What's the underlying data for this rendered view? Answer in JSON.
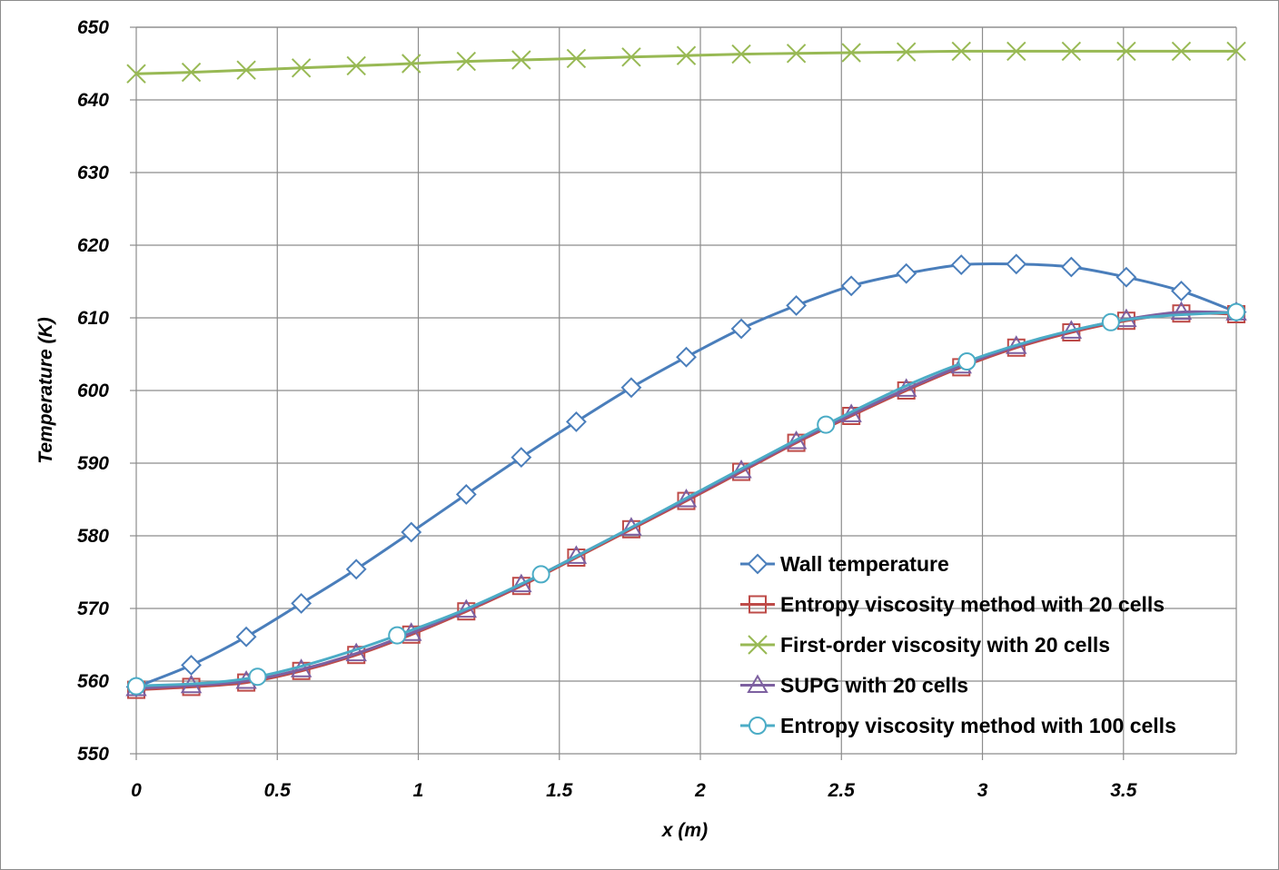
{
  "chart_data": {
    "type": "line",
    "title": "",
    "xlabel": "x (m)",
    "ylabel": "Temperature (K)",
    "xlim": [
      0,
      3.9
    ],
    "ylim": [
      550,
      650
    ],
    "grid": true,
    "legend_position": "bottom-right",
    "x_ticks": [
      "0",
      "0.5",
      "1",
      "1.5",
      "2",
      "2.5",
      "3",
      "3.5"
    ],
    "y_ticks": [
      "550",
      "560",
      "570",
      "580",
      "590",
      "600",
      "610",
      "620",
      "630",
      "640",
      "650"
    ],
    "series": [
      {
        "name": "Wall temperature",
        "color": "#4a7ebb",
        "marker": "diamond",
        "x": [
          0,
          0.195,
          0.39,
          0.585,
          0.78,
          0.975,
          1.17,
          1.365,
          1.56,
          1.755,
          1.95,
          2.145,
          2.34,
          2.535,
          2.73,
          2.925,
          3.12,
          3.315,
          3.51,
          3.705,
          3.9
        ],
        "values": [
          559.2,
          562.2,
          566.1,
          570.7,
          575.4,
          580.5,
          585.7,
          590.8,
          595.7,
          600.4,
          604.6,
          608.5,
          611.7,
          614.4,
          616.1,
          617.3,
          617.4,
          617.0,
          615.6,
          613.7,
          610.8
        ]
      },
      {
        "name": "Entropy viscosity method with 20 cells",
        "color": "#be4b48",
        "marker": "square",
        "x": [
          0,
          0.195,
          0.39,
          0.585,
          0.78,
          0.975,
          1.17,
          1.365,
          1.56,
          1.755,
          1.95,
          2.145,
          2.34,
          2.535,
          2.73,
          2.925,
          3.12,
          3.315,
          3.51,
          3.705,
          3.9
        ],
        "values": [
          558.8,
          559.2,
          559.8,
          561.4,
          563.6,
          566.4,
          569.6,
          573.1,
          577.0,
          580.9,
          584.8,
          588.8,
          592.8,
          596.5,
          600.0,
          603.2,
          605.9,
          608.0,
          609.6,
          610.6,
          610.5
        ]
      },
      {
        "name": "First-order viscosity with 20 cells",
        "color": "#98b954",
        "marker": "x",
        "x": [
          0,
          0.195,
          0.39,
          0.585,
          0.78,
          0.975,
          1.17,
          1.365,
          1.56,
          1.755,
          1.95,
          2.145,
          2.34,
          2.535,
          2.73,
          2.925,
          3.12,
          3.315,
          3.51,
          3.705,
          3.9
        ],
        "values": [
          643.6,
          643.8,
          644.1,
          644.4,
          644.7,
          645.0,
          645.3,
          645.5,
          645.7,
          645.9,
          646.1,
          646.3,
          646.4,
          646.5,
          646.6,
          646.7,
          646.7,
          646.7,
          646.7,
          646.7,
          646.7
        ]
      },
      {
        "name": "SUPG with 20 cells",
        "color": "#7d60a0",
        "marker": "triangle",
        "x": [
          0,
          0.195,
          0.39,
          0.585,
          0.78,
          0.975,
          1.17,
          1.365,
          1.56,
          1.755,
          1.95,
          2.145,
          2.34,
          2.535,
          2.73,
          2.925,
          3.12,
          3.315,
          3.51,
          3.705,
          3.9
        ],
        "values": [
          559.0,
          559.4,
          560.0,
          561.6,
          563.8,
          566.6,
          569.8,
          573.3,
          577.2,
          581.1,
          585.0,
          589.0,
          593.0,
          596.7,
          600.2,
          603.4,
          606.1,
          608.2,
          609.8,
          610.8,
          610.7
        ]
      },
      {
        "name": "Entropy viscosity method with 100 cells",
        "color": "#4bacc6",
        "marker": "circle",
        "x": [
          0,
          0.43,
          0.925,
          1.435,
          2.445,
          2.945,
          3.455,
          3.9
        ],
        "values": [
          559.3,
          560.6,
          566.3,
          574.7,
          595.3,
          604.0,
          609.4,
          610.8
        ]
      }
    ]
  }
}
